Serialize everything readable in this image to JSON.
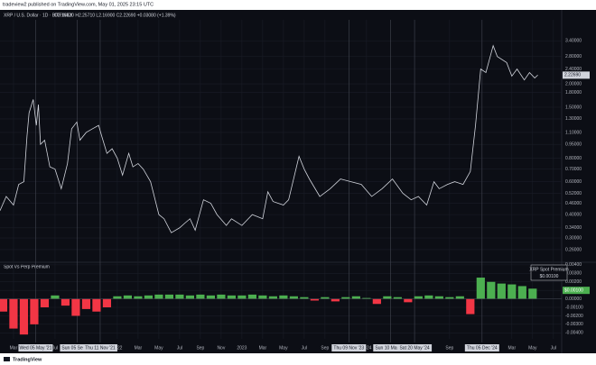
{
  "header": {
    "attribution": "tradeview2 published on TradingView.com, May 01, 2025 23:15 UTC",
    "footer": "TradingView"
  },
  "chart_data": [
    {
      "type": "line",
      "title": "XRP / U.S. Dollar · 1D · BITFINEX",
      "subtitle": "O2.18420 H2.25710 L2.16900 C2.22690 +0.03080 (+1.39%)",
      "color": "#d1d4dc",
      "log_scale": true,
      "grid": true,
      "xlim": [
        0.7,
        54.8
      ],
      "ylim": [
        0.23,
        4.4
      ],
      "yticks": [
        {
          "value": 3.4,
          "label": "3.40000"
        },
        {
          "value": 2.8,
          "label": "2.80000"
        },
        {
          "value": 2.4,
          "label": "2.40000"
        },
        {
          "value": 2.0,
          "label": "2.00000"
        },
        {
          "value": 1.8,
          "label": "1.80000"
        },
        {
          "value": 1.5,
          "label": "1.50000"
        },
        {
          "value": 1.3,
          "label": "1.30000"
        },
        {
          "value": 1.1,
          "label": "1.10000"
        },
        {
          "value": 0.95,
          "label": "0.95000"
        },
        {
          "value": 0.8,
          "label": "0.80000"
        },
        {
          "value": 0.7,
          "label": "0.70000"
        },
        {
          "value": 0.6,
          "label": "0.60000"
        },
        {
          "value": 0.52,
          "label": "0.52000"
        },
        {
          "value": 0.46,
          "label": "0.46000"
        },
        {
          "value": 0.4,
          "label": "0.40000"
        },
        {
          "value": 0.34,
          "label": "0.34000"
        },
        {
          "value": 0.3,
          "label": "0.30000"
        },
        {
          "value": 0.26,
          "label": "0.26000"
        }
      ],
      "x": [
        0.7,
        1.3,
        2.0,
        2.5,
        3.0,
        3.3,
        3.5,
        3.9,
        4.2,
        4.4,
        4.6,
        5.0,
        5.5,
        6.0,
        6.6,
        7.2,
        7.6,
        8.1,
        8.4,
        9.0,
        9.6,
        10.2,
        10.5,
        11.0,
        11.5,
        12.0,
        12.5,
        13.1,
        13.5,
        14.0,
        14.5,
        15.2,
        16.0,
        16.5,
        17.2,
        18.0,
        18.5,
        19.0,
        19.5,
        20.3,
        21.0,
        21.6,
        22.5,
        23.0,
        24.0,
        25.0,
        26.0,
        26.5,
        27.0,
        28.0,
        28.5,
        29.5,
        30.0,
        30.5,
        31.5,
        32.5,
        33.5,
        34.5,
        35.5,
        36.5,
        37.5,
        38.5,
        39.5,
        40.3,
        41.0,
        41.8,
        42.5,
        43.0,
        43.8,
        44.5,
        45.3,
        46.0,
        46.5,
        47.0,
        47.5,
        48.2,
        48.6,
        49.5,
        50.0,
        50.5,
        51.2,
        51.7,
        52.2,
        52.5
      ],
      "values": [
        0.42,
        0.5,
        0.45,
        0.58,
        0.6,
        1.05,
        1.4,
        1.65,
        1.2,
        1.55,
        0.95,
        1.0,
        0.72,
        0.7,
        0.55,
        0.75,
        1.15,
        1.25,
        1.0,
        1.1,
        1.15,
        1.2,
        1.05,
        0.85,
        0.9,
        0.8,
        0.65,
        0.85,
        0.72,
        0.75,
        0.7,
        0.6,
        0.4,
        0.38,
        0.32,
        0.34,
        0.36,
        0.38,
        0.33,
        0.48,
        0.46,
        0.4,
        0.35,
        0.38,
        0.35,
        0.4,
        0.38,
        0.53,
        0.47,
        0.45,
        0.48,
        0.82,
        0.7,
        0.62,
        0.5,
        0.55,
        0.62,
        0.6,
        0.58,
        0.5,
        0.55,
        0.62,
        0.52,
        0.48,
        0.5,
        0.45,
        0.6,
        0.55,
        0.58,
        0.6,
        0.58,
        0.68,
        1.2,
        2.4,
        2.3,
        3.2,
        2.8,
        2.6,
        2.2,
        2.4,
        2.1,
        2.3,
        2.15,
        2.23
      ],
      "last_price": {
        "value": 2.2269,
        "label": "2.22690"
      },
      "marker_dates": [
        {
          "value": 4.13,
          "label": "Wed 05 May '21"
        },
        {
          "value": 8.13,
          "label": "Sun 05 Sep '21"
        },
        {
          "value": 10.35,
          "label": "Thu 11 Nov '21"
        },
        {
          "value": 34.3,
          "label": "Thu 09 Nov '23"
        },
        {
          "value": 38.3,
          "label": "Sun 10 Mar '24"
        },
        {
          "value": 40.63,
          "label": "Sat 20 May '24"
        },
        {
          "value": 47.13,
          "label": "Thu 05 Dec '24"
        }
      ]
    },
    {
      "type": "bar",
      "title": "Spot Vs Perp Premium",
      "positive_color": "#4caf50",
      "negative_color": "#f23645",
      "grid": true,
      "xlim": [
        0.7,
        54.8
      ],
      "ylim": [
        -0.0045,
        0.0042
      ],
      "yticks": [
        {
          "value": 0.004,
          "label": "0.00400"
        },
        {
          "value": 0.003,
          "label": "0.00300"
        },
        {
          "value": 0.002,
          "label": "0.00200"
        },
        {
          "value": 0.001,
          "label": "0.00100"
        },
        {
          "value": 0,
          "label": "0.00000"
        },
        {
          "value": -0.001,
          "label": "-0.00100"
        },
        {
          "value": -0.002,
          "label": "-0.00200"
        },
        {
          "value": -0.003,
          "label": "-0.00300"
        },
        {
          "value": -0.004,
          "label": "-0.00400"
        }
      ],
      "xticks": [
        {
          "value": 2,
          "label": "Mar"
        },
        {
          "value": 6,
          "label": "Jul"
        },
        {
          "value": 12,
          "label": "2022"
        },
        {
          "value": 14,
          "label": "Mar"
        },
        {
          "value": 16,
          "label": "May"
        },
        {
          "value": 18,
          "label": "Jul"
        },
        {
          "value": 20,
          "label": "Sep"
        },
        {
          "value": 22,
          "label": "Nov"
        },
        {
          "value": 24,
          "label": "2023"
        },
        {
          "value": 26,
          "label": "Mar"
        },
        {
          "value": 28,
          "label": "May"
        },
        {
          "value": 30,
          "label": "Jul"
        },
        {
          "value": 32,
          "label": "Sep"
        },
        {
          "value": 36,
          "label": "2024"
        },
        {
          "value": 44,
          "label": "Sep"
        },
        {
          "value": 50,
          "label": "Mar"
        },
        {
          "value": 52,
          "label": "May"
        },
        {
          "value": 54,
          "label": "Jul"
        }
      ],
      "x": [
        1,
        2,
        3,
        4,
        5,
        6,
        7,
        8,
        9,
        10,
        11,
        12,
        13,
        14,
        15,
        16,
        17,
        18,
        19,
        20,
        21,
        22,
        23,
        24,
        25,
        26,
        27,
        28,
        29,
        30,
        31,
        32,
        33,
        34,
        35,
        36,
        37,
        38,
        39,
        40,
        41,
        42,
        43,
        44,
        45,
        46,
        47,
        48,
        49,
        50,
        51,
        52
      ],
      "values": [
        -0.0015,
        -0.0035,
        -0.0042,
        -0.003,
        -0.001,
        0.0004,
        -0.0008,
        -0.002,
        -0.0012,
        -0.0015,
        -0.001,
        0.0003,
        0.0004,
        0.0003,
        0.0004,
        0.0005,
        0.0005,
        0.0005,
        0.0004,
        0.0005,
        0.0004,
        0.0005,
        0.0004,
        0.0004,
        0.0005,
        0.0004,
        0.0003,
        0.0004,
        0.0003,
        0.0002,
        -0.0002,
        0.0002,
        -0.0003,
        0.0002,
        0.0003,
        0.0001,
        -0.0006,
        0.0003,
        0.0002,
        -0.0004,
        0.0003,
        0.0004,
        0.0003,
        0.0002,
        0.0003,
        -0.0018,
        0.0025,
        0.002,
        0.0018,
        0.0017,
        0.0015,
        0.0012
      ],
      "legend": {
        "title": "XRP Spot Premium",
        "value": {
          "value": 0.001,
          "label": "$0.00100"
        }
      }
    }
  ]
}
